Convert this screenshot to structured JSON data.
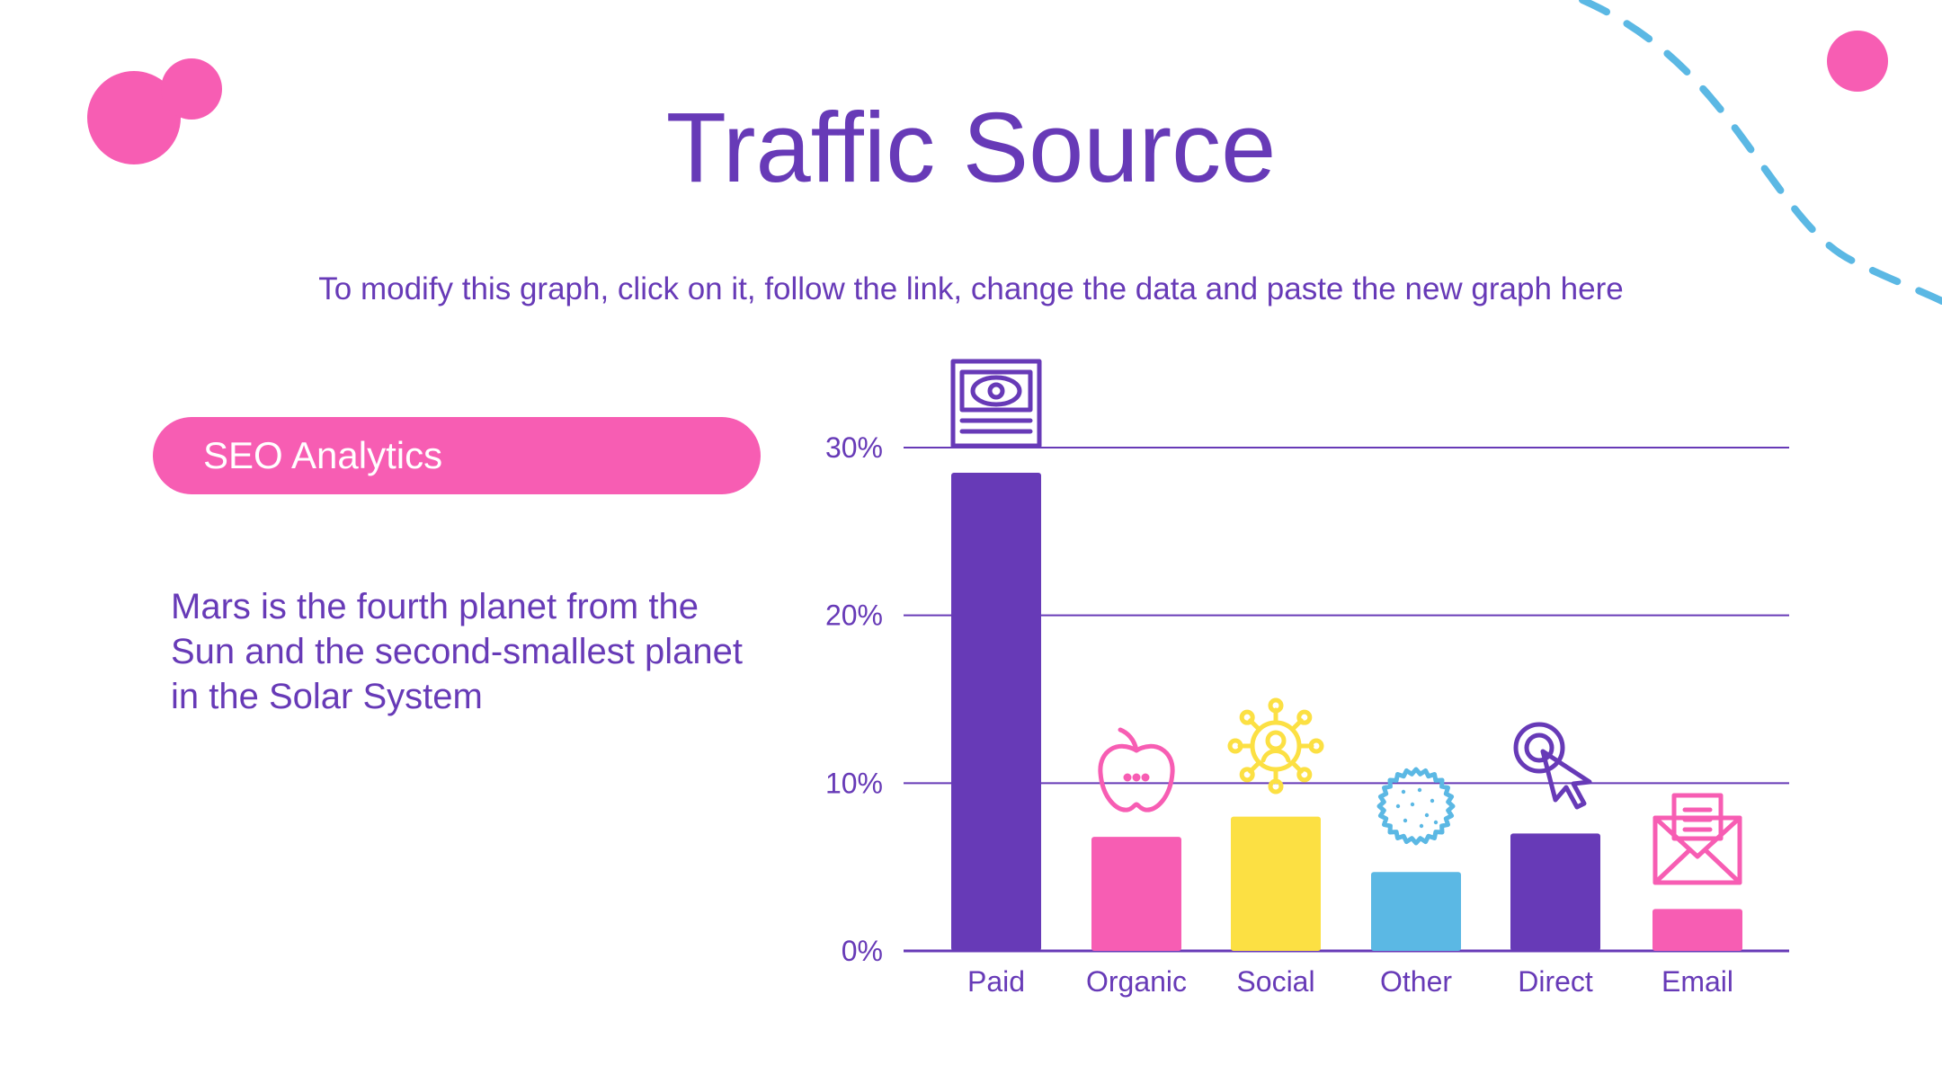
{
  "slide": {
    "title": "Traffic Source",
    "subtitle": "To modify this graph, click on it, follow the link, change the data and paste the new graph here",
    "pill_label": "SEO Analytics",
    "description": "Mars is the fourth planet from the Sun and the second-smallest planet in the Solar System"
  },
  "colors": {
    "purple": "#673AB7",
    "pink": "#F75DB3",
    "yellow": "#FCE043",
    "blue": "#5BB8E4"
  },
  "chart_data": {
    "type": "bar",
    "title": "",
    "xlabel": "",
    "ylabel": "",
    "categories": [
      "Paid",
      "Organic",
      "Social",
      "Other",
      "Direct",
      "Email"
    ],
    "values": [
      28.5,
      6.8,
      8.0,
      4.7,
      7.0,
      2.5
    ],
    "unit": "%",
    "ylim": [
      0,
      30
    ],
    "yticks": [
      0,
      10,
      20,
      30
    ],
    "ytick_labels": [
      "0%",
      "10%",
      "20%",
      "30%"
    ],
    "grid": true,
    "bar_colors": [
      "#673AB7",
      "#F75DB3",
      "#FCE043",
      "#5BB8E4",
      "#673AB7",
      "#F75DB3"
    ],
    "icons": [
      "money-icon",
      "apple-icon",
      "network-user-icon",
      "cookie-icon",
      "cursor-target-icon",
      "envelope-icon"
    ]
  }
}
